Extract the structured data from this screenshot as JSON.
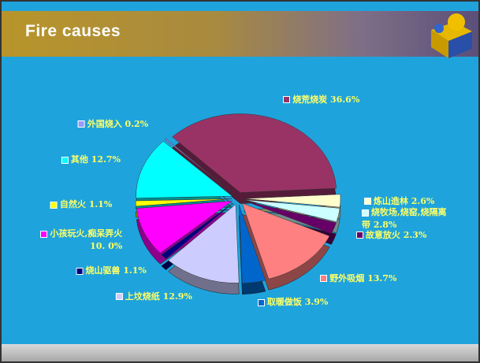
{
  "chart_data": {
    "type": "pie",
    "title": "Fire causes",
    "categories": [
      "烧荒烧炭",
      "炼山造林",
      "烧牧场,烧窑,烧隔离带",
      "故意放火",
      "野外吸烟",
      "取暖做饭",
      "上坟烧纸",
      "烧山驱兽",
      "小孩玩火,痴呆弄火",
      "自然火",
      "其他",
      "外国烧入"
    ],
    "values": [
      36.6,
      2.6,
      2.8,
      2.3,
      13.7,
      3.9,
      12.9,
      1.1,
      10,
      1.1,
      12.7,
      0.2
    ],
    "value_labels": [
      "36.6%",
      "2.6%",
      "2.8%",
      "2.3%",
      "13.7%",
      "3.9%",
      "12.9%",
      "1.1%",
      "10. 0%",
      "1.1%",
      "12.7%",
      "0.2%"
    ],
    "colors": [
      "#993366",
      "#ffffcc",
      "#ccffff",
      "#660066",
      "#ff8080",
      "#0066cc",
      "#ccccff",
      "#000080",
      "#ff00ff",
      "#ffff00",
      "#00ffff",
      "#9999ff"
    ]
  }
}
